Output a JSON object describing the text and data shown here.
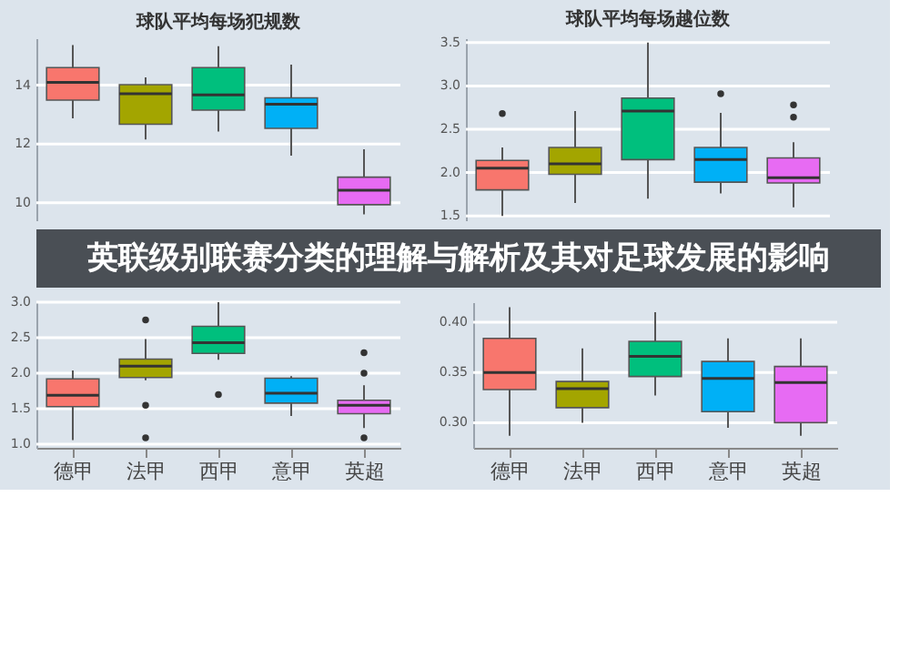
{
  "chart_data": [
    {
      "type": "box",
      "title": "球队平均每场犯规数",
      "categories": [
        null,
        null,
        null,
        null,
        null
      ],
      "colors": [
        "#f8766d",
        "#a3a500",
        "#00bf7d",
        "#00b0f6",
        "#e76bf3"
      ],
      "ylim": [
        9.4,
        15.6
      ],
      "yticks": [
        10,
        12,
        14
      ],
      "grid": "y",
      "tick_labels": "y",
      "annotations": [
        "英联级别联赛分类的理解与解析及其对足球发展的影响"
      ],
      "boxes": [
        {
          "low": 12.87,
          "q1": 13.49,
          "median": 14.1,
          "q3": 14.6,
          "high": 15.37
        },
        {
          "low": 12.15,
          "q1": 12.67,
          "median": 13.71,
          "q3": 14.02,
          "high": 14.27
        },
        {
          "low": 12.42,
          "q1": 13.15,
          "median": 13.67,
          "q3": 14.6,
          "high": 15.33
        },
        {
          "low": 11.6,
          "q1": 12.53,
          "median": 13.35,
          "q3": 13.57,
          "high": 14.7
        },
        {
          "low": 9.6,
          "q1": 9.93,
          "median": 10.42,
          "q3": 10.87,
          "high": 11.82
        }
      ]
    },
    {
      "type": "box",
      "title": "球队平均每场越位数",
      "categories": [
        null,
        null,
        null,
        null,
        null
      ],
      "colors": [
        "#f8766d",
        "#a3a500",
        "#00bf7d",
        "#00b0f6",
        "#e76bf3"
      ],
      "ylim": [
        1.45,
        3.55
      ],
      "yticks": [
        {
          "value": 1.5,
          "label": "1.5"
        },
        {
          "value": 2,
          "label": "2.0"
        },
        {
          "value": 2.5,
          "label": "2.5"
        },
        {
          "value": 3,
          "label": "3.0"
        },
        {
          "value": 3.5,
          "label": "3.5"
        }
      ],
      "grid": "y",
      "tick_labels": "y",
      "boxes": [
        {
          "low": 1.5,
          "q1": 1.8,
          "median": 2.05,
          "q3": 2.14,
          "high": 2.29,
          "outliers": [
            2.68
          ]
        },
        {
          "low": 1.65,
          "q1": 1.98,
          "median": 2.1,
          "q3": 2.29,
          "high": 2.71
        },
        {
          "low": 1.7,
          "q1": 2.15,
          "median": 2.71,
          "q3": 2.86,
          "high": 3.5
        },
        {
          "low": 1.76,
          "q1": 1.89,
          "median": 2.15,
          "q3": 2.29,
          "high": 2.69,
          "outliers": [
            2.91
          ]
        },
        {
          "low": 1.6,
          "q1": 1.88,
          "median": 1.94,
          "q3": 2.17,
          "high": 2.35,
          "outliers": [
            2.78,
            2.64
          ]
        }
      ]
    },
    {
      "type": "box",
      "categories": [
        "德甲",
        "法甲",
        "西甲",
        "意甲",
        "英超"
      ],
      "colors": [
        "#f8766d",
        "#a3a500",
        "#00bf7d",
        "#00b0f6",
        "#e76bf3"
      ],
      "ylim": [
        0.95,
        3.0
      ],
      "yticks": [
        {
          "value": 1,
          "label": "1.0"
        },
        {
          "value": 1.5,
          "label": "1.5"
        },
        {
          "value": 2,
          "label": "2.0"
        },
        {
          "value": 2.5,
          "label": "2.5"
        },
        {
          "value": 3,
          "label": "3.0"
        }
      ],
      "grid": "y",
      "boxes": [
        {
          "low": 1.06,
          "q1": 1.53,
          "median": 1.69,
          "q3": 1.92,
          "high": 2.04
        },
        {
          "low": 1.9,
          "q1": 1.94,
          "median": 2.1,
          "q3": 2.2,
          "high": 2.48,
          "outliers": [
            2.75,
            1.55,
            1.09
          ]
        },
        {
          "low": 2.19,
          "q1": 2.28,
          "median": 2.43,
          "q3": 2.66,
          "high": 3.0,
          "outliers": [
            1.7
          ]
        },
        {
          "low": 1.4,
          "q1": 1.58,
          "median": 1.72,
          "q3": 1.93,
          "high": 1.96
        },
        {
          "low": 1.23,
          "q1": 1.43,
          "median": 1.55,
          "q3": 1.62,
          "high": 1.83,
          "outliers": [
            2.29,
            2.0,
            1.09
          ]
        }
      ]
    },
    {
      "type": "box",
      "categories": [
        "德甲",
        "法甲",
        "西甲",
        "意甲",
        "英超"
      ],
      "colors": [
        "#f8766d",
        "#a3a500",
        "#00bf7d",
        "#00b0f6",
        "#e76bf3"
      ],
      "ylim": [
        0.275,
        0.42
      ],
      "yticks": [
        {
          "value": 0.3,
          "label": "0.30"
        },
        {
          "value": 0.35,
          "label": "0.35"
        },
        {
          "value": 0.4,
          "label": "0.40"
        }
      ],
      "grid": "y",
      "boxes": [
        {
          "low": 0.287,
          "q1": 0.333,
          "median": 0.35,
          "q3": 0.384,
          "high": 0.415
        },
        {
          "low": 0.3,
          "q1": 0.315,
          "median": 0.334,
          "q3": 0.341,
          "high": 0.374
        },
        {
          "low": 0.327,
          "q1": 0.346,
          "median": 0.366,
          "q3": 0.381,
          "high": 0.41
        },
        {
          "low": 0.295,
          "q1": 0.311,
          "median": 0.344,
          "q3": 0.361,
          "high": 0.384
        },
        {
          "low": 0.287,
          "q1": 0.3,
          "median": 0.34,
          "q3": 0.356,
          "high": 0.384
        }
      ]
    }
  ]
}
